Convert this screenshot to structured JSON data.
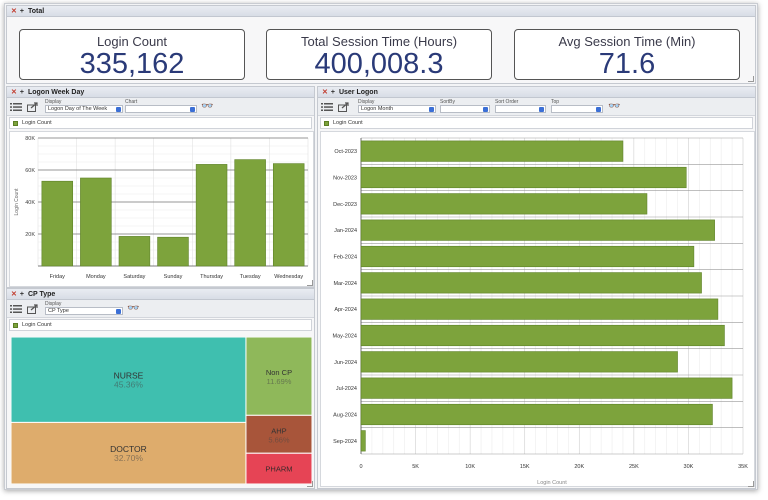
{
  "total_panel": {
    "title": "Total",
    "kpis": [
      {
        "title": "Login Count",
        "value": "335,162"
      },
      {
        "title": "Total Session Time (Hours)",
        "value": "400,008.3"
      },
      {
        "title": "Avg Session Time (Min)",
        "value": "71.6"
      }
    ]
  },
  "weekday_panel": {
    "title": "Logon Week Day",
    "display_label": "Display",
    "display_value": "Logon Day of The Week",
    "chart_label": "Chart",
    "chart_value": "",
    "legend": "Login Count"
  },
  "user_logon_panel": {
    "title": "User Logon",
    "display_label": "Display",
    "display_value": "Logon Month",
    "sortby_label": "SortBy",
    "sortby_value": "",
    "sortorder_label": "Sort Order",
    "sortorder_value": "",
    "top_label": "Top",
    "top_value": "",
    "legend": "Login Count"
  },
  "cptype_panel": {
    "title": "CP Type",
    "display_label": "Display",
    "display_value": "CP Type",
    "legend": "Login Count"
  },
  "colors": {
    "bar": "#7da33c",
    "nurse": "#3fbfaf",
    "doctor": "#deac6c",
    "non_cp": "#8fb85a",
    "ahp": "#a8553a",
    "pharm": "#e64455"
  },
  "chart_data": [
    {
      "type": "bar",
      "categories": [
        "Friday",
        "Monday",
        "Saturday",
        "Sunday",
        "Thursday",
        "Tuesday",
        "Wednesday"
      ],
      "values": [
        53000,
        55000,
        18500,
        18000,
        63500,
        66500,
        64000
      ],
      "ylabel": "Login Count",
      "yticks": [
        "20K",
        "40K",
        "60K",
        "80K"
      ],
      "ylim": [
        0,
        80000
      ],
      "legend": "Login Count"
    },
    {
      "type": "bar",
      "orientation": "horizontal",
      "categories": [
        "Oct-2023",
        "Nov-2023",
        "Dec-2023",
        "Jan-2024",
        "Feb-2024",
        "Mar-2024",
        "Apr-2024",
        "May-2024",
        "Jun-2024",
        "Jul-2024",
        "Aug-2024",
        "Sep-2024"
      ],
      "values": [
        24000,
        29800,
        26200,
        32400,
        30500,
        31200,
        32700,
        33300,
        29000,
        34000,
        32200,
        400
      ],
      "xlabel": "Login Count",
      "xticks": [
        "0",
        "5K",
        "10K",
        "15K",
        "20K",
        "25K",
        "30K",
        "35K"
      ],
      "xlim": [
        0,
        35000
      ],
      "legend": "Login Count"
    },
    {
      "type": "treemap",
      "categories": [
        "NURSE",
        "DOCTOR",
        "Non CP",
        "AHP",
        "PHARM"
      ],
      "values": [
        45.36,
        32.7,
        11.69,
        5.66,
        4.59
      ],
      "labels": [
        "45.36%",
        "32.70%",
        "11.69%",
        "5.66%",
        ""
      ],
      "legend": "Login Count"
    }
  ]
}
